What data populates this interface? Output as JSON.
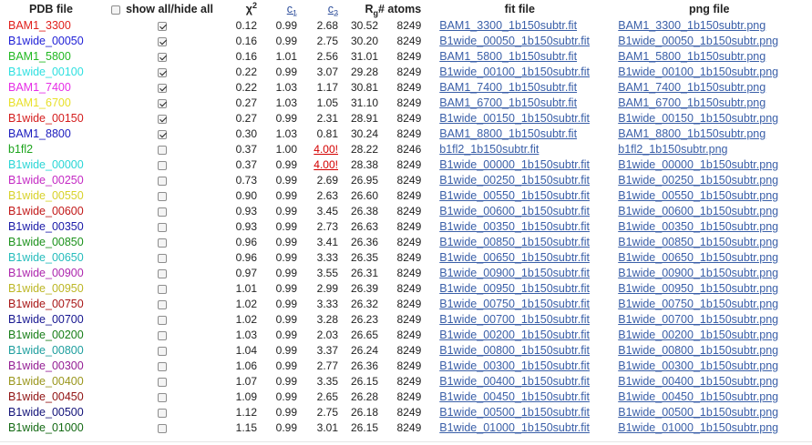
{
  "headers": {
    "pdb": "PDB file",
    "showall": "show all/hide all",
    "chi": "χ",
    "chi_sup": "2",
    "c1": "c",
    "c1_sub": "1",
    "c2": "c",
    "c2_sub": "2",
    "rg": "R",
    "rg_sub": "g",
    "atoms": "# atoms",
    "fit": "fit file",
    "png": "png file"
  },
  "rows": [
    {
      "name": "BAM1_3300",
      "color": "#e0201c",
      "checked": true,
      "chi": "0.12",
      "c1": "0.99",
      "c2": "2.68",
      "rg": "30.52",
      "atoms": "8249",
      "fit": "BAM1_3300_1b150subtr.fit",
      "png": "BAM1_3300_1b150subtr.png"
    },
    {
      "name": "B1wide_00050",
      "color": "#1f1fd6",
      "checked": true,
      "chi": "0.16",
      "c1": "0.99",
      "c2": "2.75",
      "rg": "30.20",
      "atoms": "8249",
      "fit": "B1wide_00050_1b150subtr.fit",
      "png": "B1wide_00050_1b150subtr.png"
    },
    {
      "name": "BAM1_5800",
      "color": "#22b822",
      "checked": true,
      "chi": "0.16",
      "c1": "1.01",
      "c2": "2.56",
      "rg": "31.01",
      "atoms": "8249",
      "fit": "BAM1_5800_1b150subtr.fit",
      "png": "BAM1_5800_1b150subtr.png"
    },
    {
      "name": "B1wide_00100",
      "color": "#2fe0e0",
      "checked": true,
      "chi": "0.22",
      "c1": "0.99",
      "c2": "3.07",
      "rg": "29.28",
      "atoms": "8249",
      "fit": "B1wide_00100_1b150subtr.fit",
      "png": "B1wide_00100_1b150subtr.png"
    },
    {
      "name": "BAM1_7400",
      "color": "#e62ee6",
      "checked": true,
      "chi": "0.22",
      "c1": "1.03",
      "c2": "1.17",
      "rg": "30.81",
      "atoms": "8249",
      "fit": "BAM1_7400_1b150subtr.fit",
      "png": "BAM1_7400_1b150subtr.png"
    },
    {
      "name": "BAM1_6700",
      "color": "#e8e02a",
      "checked": true,
      "chi": "0.27",
      "c1": "1.03",
      "c2": "1.05",
      "rg": "31.10",
      "atoms": "8249",
      "fit": "BAM1_6700_1b150subtr.fit",
      "png": "BAM1_6700_1b150subtr.png"
    },
    {
      "name": "B1wide_00150",
      "color": "#d41c1c",
      "checked": true,
      "chi": "0.27",
      "c1": "0.99",
      "c2": "2.31",
      "rg": "28.91",
      "atoms": "8249",
      "fit": "B1wide_00150_1b150subtr.fit",
      "png": "B1wide_00150_1b150subtr.png"
    },
    {
      "name": "BAM1_8800",
      "color": "#1c1cbe",
      "checked": true,
      "chi": "0.30",
      "c1": "1.03",
      "c2": "0.81",
      "rg": "30.24",
      "atoms": "8249",
      "fit": "BAM1_8800_1b150subtr.fit",
      "png": "BAM1_8800_1b150subtr.png"
    },
    {
      "name": "b1fl2",
      "color": "#1da41d",
      "checked": false,
      "chi": "0.37",
      "c1": "1.00",
      "c2": "4.00!",
      "c2red": true,
      "rg": "28.22",
      "atoms": "8246",
      "fit": "b1fl2_1b150subtr.fit",
      "png": "b1fl2_1b150subtr.png"
    },
    {
      "name": "B1wide_00000",
      "color": "#2ad6d6",
      "checked": false,
      "chi": "0.37",
      "c1": "0.99",
      "c2": "4.00!",
      "c2red": true,
      "rg": "28.38",
      "atoms": "8249",
      "fit": "B1wide_00000_1b150subtr.fit",
      "png": "B1wide_00000_1b150subtr.png"
    },
    {
      "name": "B1wide_00250",
      "color": "#c42ac4",
      "checked": false,
      "chi": "0.73",
      "c1": "0.99",
      "c2": "2.69",
      "rg": "26.95",
      "atoms": "8249",
      "fit": "B1wide_00250_1b150subtr.fit",
      "png": "B1wide_00250_1b150subtr.png"
    },
    {
      "name": "B1wide_00550",
      "color": "#d8d22a",
      "checked": false,
      "chi": "0.90",
      "c1": "0.99",
      "c2": "2.63",
      "rg": "26.60",
      "atoms": "8249",
      "fit": "B1wide_00550_1b150subtr.fit",
      "png": "B1wide_00550_1b150subtr.png"
    },
    {
      "name": "B1wide_00600",
      "color": "#c21818",
      "checked": false,
      "chi": "0.93",
      "c1": "0.99",
      "c2": "3.45",
      "rg": "26.38",
      "atoms": "8249",
      "fit": "B1wide_00600_1b150subtr.fit",
      "png": "B1wide_00600_1b150subtr.png"
    },
    {
      "name": "B1wide_00350",
      "color": "#1a1aa8",
      "checked": false,
      "chi": "0.93",
      "c1": "0.99",
      "c2": "2.73",
      "rg": "26.63",
      "atoms": "8249",
      "fit": "B1wide_00350_1b150subtr.fit",
      "png": "B1wide_00350_1b150subtr.png"
    },
    {
      "name": "B1wide_00850",
      "color": "#1c921c",
      "checked": false,
      "chi": "0.96",
      "c1": "0.99",
      "c2": "3.41",
      "rg": "26.36",
      "atoms": "8249",
      "fit": "B1wide_00850_1b150subtr.fit",
      "png": "B1wide_00850_1b150subtr.png"
    },
    {
      "name": "B1wide_00650",
      "color": "#25bcbc",
      "checked": false,
      "chi": "0.96",
      "c1": "0.99",
      "c2": "3.33",
      "rg": "26.35",
      "atoms": "8249",
      "fit": "B1wide_00650_1b150subtr.fit",
      "png": "B1wide_00650_1b150subtr.png"
    },
    {
      "name": "B1wide_00900",
      "color": "#ad26ad",
      "checked": false,
      "chi": "0.97",
      "c1": "0.99",
      "c2": "3.55",
      "rg": "26.31",
      "atoms": "8249",
      "fit": "B1wide_00900_1b150subtr.fit",
      "png": "B1wide_00900_1b150subtr.png"
    },
    {
      "name": "B1wide_00950",
      "color": "#bcb624",
      "checked": false,
      "chi": "1.01",
      "c1": "0.99",
      "c2": "2.99",
      "rg": "26.39",
      "atoms": "8249",
      "fit": "B1wide_00950_1b150subtr.fit",
      "png": "B1wide_00950_1b150subtr.png"
    },
    {
      "name": "B1wide_00750",
      "color": "#a81616",
      "checked": false,
      "chi": "1.02",
      "c1": "0.99",
      "c2": "3.33",
      "rg": "26.32",
      "atoms": "8249",
      "fit": "B1wide_00750_1b150subtr.fit",
      "png": "B1wide_00750_1b150subtr.png"
    },
    {
      "name": "B1wide_00700",
      "color": "#161690",
      "checked": false,
      "chi": "1.02",
      "c1": "0.99",
      "c2": "3.28",
      "rg": "26.23",
      "atoms": "8249",
      "fit": "B1wide_00700_1b150subtr.fit",
      "png": "B1wide_00700_1b150subtr.png"
    },
    {
      "name": "B1wide_00200",
      "color": "#177e17",
      "checked": false,
      "chi": "1.03",
      "c1": "0.99",
      "c2": "2.03",
      "rg": "26.65",
      "atoms": "8249",
      "fit": "B1wide_00200_1b150subtr.fit",
      "png": "B1wide_00200_1b150subtr.png"
    },
    {
      "name": "B1wide_00800",
      "color": "#1e9e9e",
      "checked": false,
      "chi": "1.04",
      "c1": "0.99",
      "c2": "3.37",
      "rg": "26.24",
      "atoms": "8249",
      "fit": "B1wide_00800_1b150subtr.fit",
      "png": "B1wide_00800_1b150subtr.png"
    },
    {
      "name": "B1wide_00300",
      "color": "#941e94",
      "checked": false,
      "chi": "1.06",
      "c1": "0.99",
      "c2": "2.77",
      "rg": "26.36",
      "atoms": "8249",
      "fit": "B1wide_00300_1b150subtr.fit",
      "png": "B1wide_00300_1b150subtr.png"
    },
    {
      "name": "B1wide_00400",
      "color": "#9a961c",
      "checked": false,
      "chi": "1.07",
      "c1": "0.99",
      "c2": "3.35",
      "rg": "26.15",
      "atoms": "8249",
      "fit": "B1wide_00400_1b150subtr.fit",
      "png": "B1wide_00400_1b150subtr.png"
    },
    {
      "name": "B1wide_00450",
      "color": "#901212",
      "checked": false,
      "chi": "1.09",
      "c1": "0.99",
      "c2": "2.65",
      "rg": "26.28",
      "atoms": "8249",
      "fit": "B1wide_00450_1b150subtr.fit",
      "png": "B1wide_00450_1b150subtr.png"
    },
    {
      "name": "B1wide_00500",
      "color": "#121278",
      "checked": false,
      "chi": "1.12",
      "c1": "0.99",
      "c2": "2.75",
      "rg": "26.18",
      "atoms": "8249",
      "fit": "B1wide_00500_1b150subtr.fit",
      "png": "B1wide_00500_1b150subtr.png"
    },
    {
      "name": "B1wide_01000",
      "color": "#146a14",
      "checked": false,
      "chi": "1.15",
      "c1": "0.99",
      "c2": "3.01",
      "rg": "26.15",
      "atoms": "8249",
      "fit": "B1wide_01000_1b150subtr.fit",
      "png": "B1wide_01000_1b150subtr.png"
    }
  ]
}
